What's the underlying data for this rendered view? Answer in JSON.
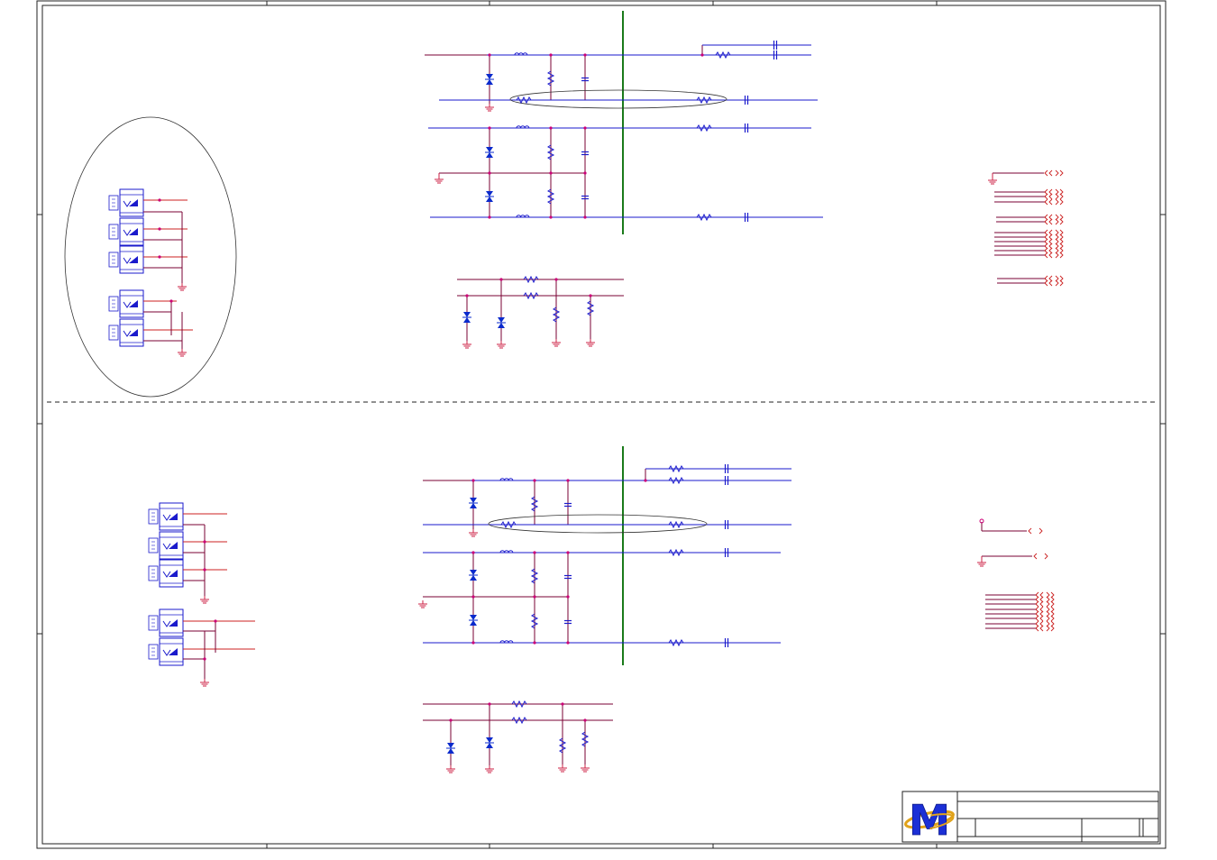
{
  "colors": {
    "frame": "#222222",
    "wire_blue": "#1a1acc",
    "wire_dark": "#7a0033",
    "wire_red": "#cc2222",
    "divider": "#1a7a1a",
    "ground": "#cc2244",
    "diode": "#0a2acc",
    "junction": "#cc0077",
    "logo_blue": "#1b2fd6",
    "logo_gold": "#e0a21a"
  },
  "icons": {
    "resistor": "resistor-icon",
    "capacitor": "capacitor-icon",
    "inductor": "inductor-icon",
    "tvs_diode": "tvs-diode-icon",
    "ground": "ground-icon",
    "connector": "connector-icon",
    "logo": "m-logo-icon",
    "net_port": "net-port-arrow-icon"
  },
  "title_block": {
    "logo_letter": "M"
  }
}
